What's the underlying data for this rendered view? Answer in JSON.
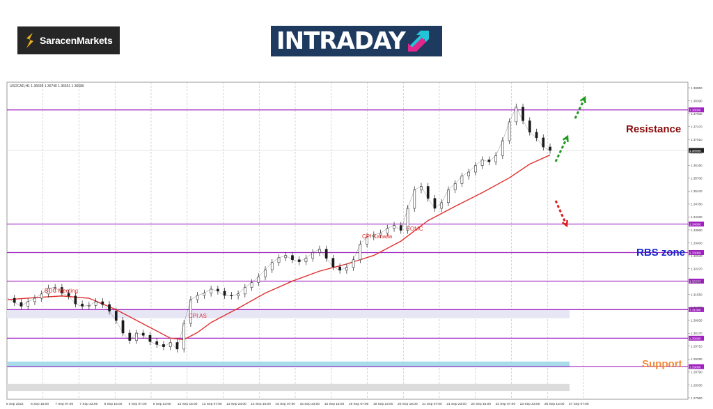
{
  "branding": {
    "saracen_logo": "SaracenMarkets",
    "intraday_logo": "INTRADAY"
  },
  "chart_data": {
    "type": "line",
    "symbol_header": "USDCAD,H1  1.36698 1.36746 1.36551 1.36586",
    "current_price": "1.36586",
    "y_ticks": [
      "1.38850",
      "1.38390",
      "1.37930",
      "1.37470",
      "1.37010",
      "1.36550",
      "1.36160",
      "1.35700",
      "1.35240",
      "1.34780",
      "1.34320",
      "1.33860",
      "1.33400",
      "1.32940",
      "1.32470",
      "1.32010",
      "1.31550",
      "1.31090",
      "1.30630",
      "1.30170",
      "1.29710",
      "1.29250",
      "1.28790",
      "1.28330",
      "1.27960"
    ],
    "x_ticks": [
      "5 Sep 2022",
      "6 Sep 15:00",
      "7 Sep 07:00",
      "7 Sep 23:00",
      "8 Sep 15:00",
      "9 Sep 07:00",
      "9 Sep 23:00",
      "12 Sep 15:00",
      "13 Sep 07:00",
      "13 Sep 23:00",
      "14 Sep 15:00",
      "15 Sep 07:00",
      "15 Sep 23:00",
      "16 Sep 15:00",
      "19 Sep 07:00",
      "19 Sep 23:00",
      "20 Sep 15:00",
      "21 Sep 07:00",
      "21 Sep 23:00",
      "22 Sep 15:00",
      "23 Sep 07:00",
      "23 Sep 23:00",
      "26 Sep 15:00",
      "27 Sep 07:00"
    ],
    "ylim": [
      1.2786,
      1.3897
    ],
    "levels": [
      {
        "price": 1.38,
        "label": "1.38000",
        "zone": "Resistance"
      },
      {
        "price": 1.34,
        "label": "1.34000",
        "zone": "RBS zone"
      },
      {
        "price": 1.33,
        "label": "1.33000",
        "zone": ""
      },
      {
        "price": 1.32,
        "label": "1.32000",
        "zone": ""
      },
      {
        "price": 1.31,
        "label": "1.31000",
        "zone": ""
      },
      {
        "price": 1.3,
        "label": "1.30000",
        "zone": "Support"
      },
      {
        "price": 1.29,
        "label": "1.29000",
        "zone": ""
      }
    ],
    "zone_labels": {
      "resistance": "Resistance",
      "rbs": "RBS zone",
      "support": "Support"
    },
    "zone_colors": {
      "resistance": "#8b0a0a",
      "rbs": "#1525c8",
      "support": "#f08a3c",
      "level_line": "#a020c0",
      "ma": "#e03030",
      "price": "#1a1a1a",
      "up_arrow": "#1e9b1e",
      "down_arrow": "#e01e1e"
    },
    "events": [
      {
        "label": "BOC Meeting",
        "x": "7 Sep"
      },
      {
        "label": "CPI AS",
        "x": "13 Sep"
      },
      {
        "label": "CPI Kanada",
        "x": "20 Sep"
      },
      {
        "label": "FOMC",
        "x": "21 Sep"
      }
    ],
    "price_series": [
      [
        0,
        1.314
      ],
      [
        1,
        1.3125
      ],
      [
        2,
        1.3112
      ],
      [
        3,
        1.3128
      ],
      [
        4,
        1.314
      ],
      [
        5,
        1.3155
      ],
      [
        6,
        1.3175
      ],
      [
        7,
        1.3178
      ],
      [
        8,
        1.3158
      ],
      [
        9,
        1.3148
      ],
      [
        10,
        1.312
      ],
      [
        11,
        1.3112
      ],
      [
        12,
        1.3115
      ],
      [
        13,
        1.3128
      ],
      [
        14,
        1.3118
      ],
      [
        15,
        1.3095
      ],
      [
        16,
        1.3062
      ],
      [
        17,
        1.3018
      ],
      [
        18,
        1.2992
      ],
      [
        19,
        1.3018
      ],
      [
        20,
        1.301
      ],
      [
        21,
        1.2988
      ],
      [
        22,
        1.2978
      ],
      [
        23,
        1.297
      ],
      [
        24,
        1.2985
      ],
      [
        25,
        1.2962
      ],
      [
        26,
        1.3052
      ],
      [
        27,
        1.3135
      ],
      [
        28,
        1.315
      ],
      [
        29,
        1.3158
      ],
      [
        30,
        1.3172
      ],
      [
        31,
        1.3165
      ],
      [
        32,
        1.315
      ],
      [
        33,
        1.3148
      ],
      [
        34,
        1.3155
      ],
      [
        35,
        1.3178
      ],
      [
        36,
        1.3195
      ],
      [
        37,
        1.3215
      ],
      [
        38,
        1.324
      ],
      [
        39,
        1.3265
      ],
      [
        40,
        1.3282
      ],
      [
        41,
        1.329
      ],
      [
        42,
        1.3275
      ],
      [
        43,
        1.3268
      ],
      [
        44,
        1.328
      ],
      [
        45,
        1.33
      ],
      [
        46,
        1.3312
      ],
      [
        47,
        1.328
      ],
      [
        48,
        1.325
      ],
      [
        49,
        1.3238
      ],
      [
        50,
        1.3248
      ],
      [
        51,
        1.3275
      ],
      [
        52,
        1.333
      ],
      [
        53,
        1.3355
      ],
      [
        54,
        1.3362
      ],
      [
        55,
        1.3368
      ],
      [
        56,
        1.3385
      ],
      [
        57,
        1.3395
      ],
      [
        58,
        1.3378
      ],
      [
        59,
        1.3455
      ],
      [
        60,
        1.352
      ],
      [
        61,
        1.3532
      ],
      [
        62,
        1.349
      ],
      [
        63,
        1.3455
      ],
      [
        64,
        1.3475
      ],
      [
        65,
        1.352
      ],
      [
        66,
        1.3542
      ],
      [
        67,
        1.3568
      ],
      [
        68,
        1.3582
      ],
      [
        69,
        1.3605
      ],
      [
        70,
        1.3625
      ],
      [
        71,
        1.3618
      ],
      [
        72,
        1.364
      ],
      [
        73,
        1.3692
      ],
      [
        74,
        1.3758
      ],
      [
        75,
        1.381
      ],
      [
        76,
        1.3762
      ],
      [
        77,
        1.3722
      ],
      [
        78,
        1.3702
      ],
      [
        79,
        1.367
      ],
      [
        80,
        1.3658
      ]
    ],
    "ma_series": [
      [
        0,
        1.3135
      ],
      [
        4,
        1.3142
      ],
      [
        8,
        1.3148
      ],
      [
        12,
        1.314
      ],
      [
        16,
        1.31
      ],
      [
        20,
        1.305
      ],
      [
        24,
        1.3
      ],
      [
        26,
        1.2995
      ],
      [
        28,
        1.302
      ],
      [
        30,
        1.3055
      ],
      [
        34,
        1.3105
      ],
      [
        38,
        1.3158
      ],
      [
        42,
        1.32
      ],
      [
        46,
        1.3235
      ],
      [
        50,
        1.326
      ],
      [
        54,
        1.329
      ],
      [
        58,
        1.334
      ],
      [
        62,
        1.3412
      ],
      [
        66,
        1.3462
      ],
      [
        70,
        1.351
      ],
      [
        74,
        1.3562
      ],
      [
        77,
        1.361
      ],
      [
        80,
        1.3642
      ]
    ],
    "forecast_arrows": [
      {
        "direction": "up"
      },
      {
        "direction": "up"
      },
      {
        "direction": "down"
      }
    ]
  }
}
